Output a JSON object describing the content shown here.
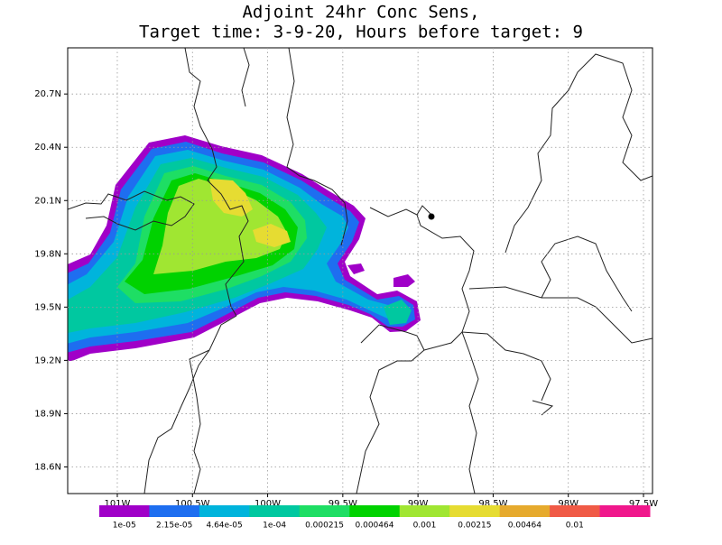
{
  "map": {
    "title": [
      "Adjoint 24hr Conc Sens,",
      "Target time: 3-9-20, Hours before target: 9"
    ],
    "xlim": [
      -101.33,
      -97.44
    ],
    "ylim": [
      18.45,
      20.96
    ],
    "yticks": [
      {
        "value": 20.7,
        "label": "20.7N"
      },
      {
        "value": 20.4,
        "label": "20.4N"
      },
      {
        "value": 20.1,
        "label": "20.1N"
      },
      {
        "value": 19.8,
        "label": "19.8N"
      },
      {
        "value": 19.5,
        "label": "19.5N"
      },
      {
        "value": 19.2,
        "label": "19.2N"
      },
      {
        "value": 18.9,
        "label": "18.9N"
      },
      {
        "value": 18.6,
        "label": "18.6N"
      }
    ],
    "xticks": [
      {
        "value": -101,
        "label": "101W"
      },
      {
        "value": -100.5,
        "label": "100.5W"
      },
      {
        "value": -100,
        "label": "100W"
      },
      {
        "value": -99.5,
        "label": "99.5W"
      },
      {
        "value": -99,
        "label": "99W"
      },
      {
        "value": -98.5,
        "label": "98.5W"
      },
      {
        "value": -98,
        "label": "98W"
      },
      {
        "value": -97.5,
        "label": "97.5W"
      }
    ],
    "grid": true,
    "colorbar": {
      "colors": [
        "#a000c8",
        "#1e6ef0",
        "#00b4dc",
        "#00c8a0",
        "#1ede64",
        "#00d200",
        "#a0e632",
        "#e6dc32",
        "#e6aa2d",
        "#f05a46",
        "#f0188c"
      ],
      "labels": [
        "1e-05",
        "2.15e-05",
        "4.64e-05",
        "1e-04",
        "0.000215",
        "0.000464",
        "0.001",
        "0.00215",
        "0.00464",
        "0.01"
      ]
    }
  }
}
